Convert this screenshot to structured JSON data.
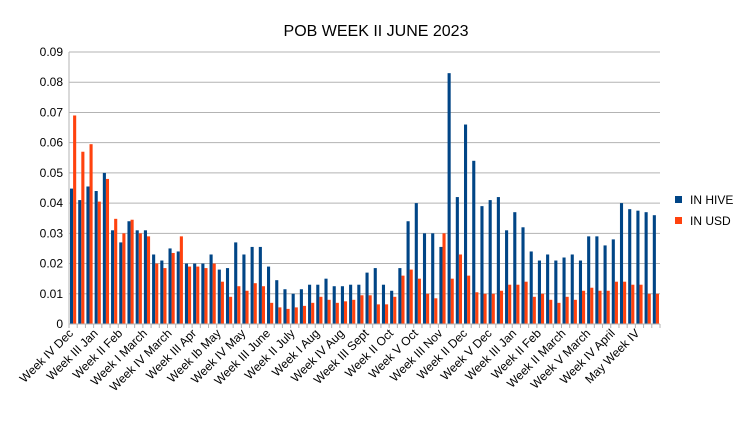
{
  "chart_data": {
    "type": "bar",
    "title": "POB WEEK II JUNE 2023",
    "xlabel": "",
    "ylabel": "",
    "ylim": [
      0,
      0.09
    ],
    "yticks": [
      0,
      0.01,
      0.02,
      0.03,
      0.04,
      0.05,
      0.06,
      0.07,
      0.08,
      0.09
    ],
    "ytick_labels": [
      "0",
      "0.01",
      "0.02",
      "0.03",
      "0.04",
      "0.05",
      "0.06",
      "0.07",
      "0.08",
      "0.09"
    ],
    "grid": true,
    "legend": "right",
    "x_labels": [
      "Week IV Dec",
      "Week III Jan",
      "Week II Feb",
      "Week I March",
      "Week IV March",
      "Week III Apr",
      "Week Ib May",
      "Week IV May",
      "Week III June",
      "Week II July",
      "Week I Aug",
      "Week IV Aug",
      "Week III Sept",
      "Week II Oct",
      "Week V Oct",
      "Week III Nov",
      "Week II Dec",
      "Week V Dec",
      "Week III Jan",
      "Week II Feb",
      "Week II March",
      "Week V March",
      "Week IV April",
      "May Week IV"
    ],
    "series": [
      {
        "name": "IN HIVE",
        "color": "#004586",
        "values": [
          0.0448,
          0.041,
          0.0455,
          0.044,
          0.05,
          0.031,
          0.027,
          0.034,
          0.031,
          0.031,
          0.023,
          0.021,
          0.025,
          0.024,
          0.02,
          0.02,
          0.02,
          0.023,
          0.018,
          0.0185,
          0.027,
          0.023,
          0.0255,
          0.0255,
          0.019,
          0.0145,
          0.0115,
          0.01,
          0.0115,
          0.013,
          0.013,
          0.015,
          0.0125,
          0.0125,
          0.013,
          0.013,
          0.017,
          0.0185,
          0.013,
          0.011,
          0.0185,
          0.034,
          0.04,
          0.03,
          0.03,
          0.0255,
          0.083,
          0.042,
          0.066,
          0.054,
          0.039,
          0.041,
          0.042,
          0.031,
          0.037,
          0.032,
          0.024,
          0.021,
          0.023,
          0.021,
          0.022,
          0.023,
          0.021,
          0.029,
          0.029,
          0.026,
          0.028,
          0.04,
          0.038,
          0.0375,
          0.037,
          0.036
        ]
      },
      {
        "name": "IN USD",
        "color": "#ff420e",
        "values": [
          0.069,
          0.057,
          0.0595,
          0.0405,
          0.048,
          0.0348,
          0.03,
          0.0345,
          0.03,
          0.029,
          0.02,
          0.0185,
          0.0235,
          0.029,
          0.019,
          0.019,
          0.0185,
          0.02,
          0.014,
          0.009,
          0.0125,
          0.011,
          0.0135,
          0.0125,
          0.007,
          0.0055,
          0.005,
          0.0055,
          0.006,
          0.007,
          0.009,
          0.008,
          0.007,
          0.0075,
          0.008,
          0.0095,
          0.0095,
          0.0065,
          0.0065,
          0.009,
          0.016,
          0.018,
          0.015,
          0.01,
          0.0085,
          0.03,
          0.015,
          0.023,
          0.016,
          0.0105,
          0.01,
          0.01,
          0.011,
          0.013,
          0.013,
          0.014,
          0.009,
          0.01,
          0.008,
          0.007,
          0.009,
          0.008,
          0.011,
          0.012,
          0.011,
          0.011,
          0.014,
          0.014,
          0.013,
          0.013,
          0.01,
          0.01
        ]
      }
    ]
  }
}
